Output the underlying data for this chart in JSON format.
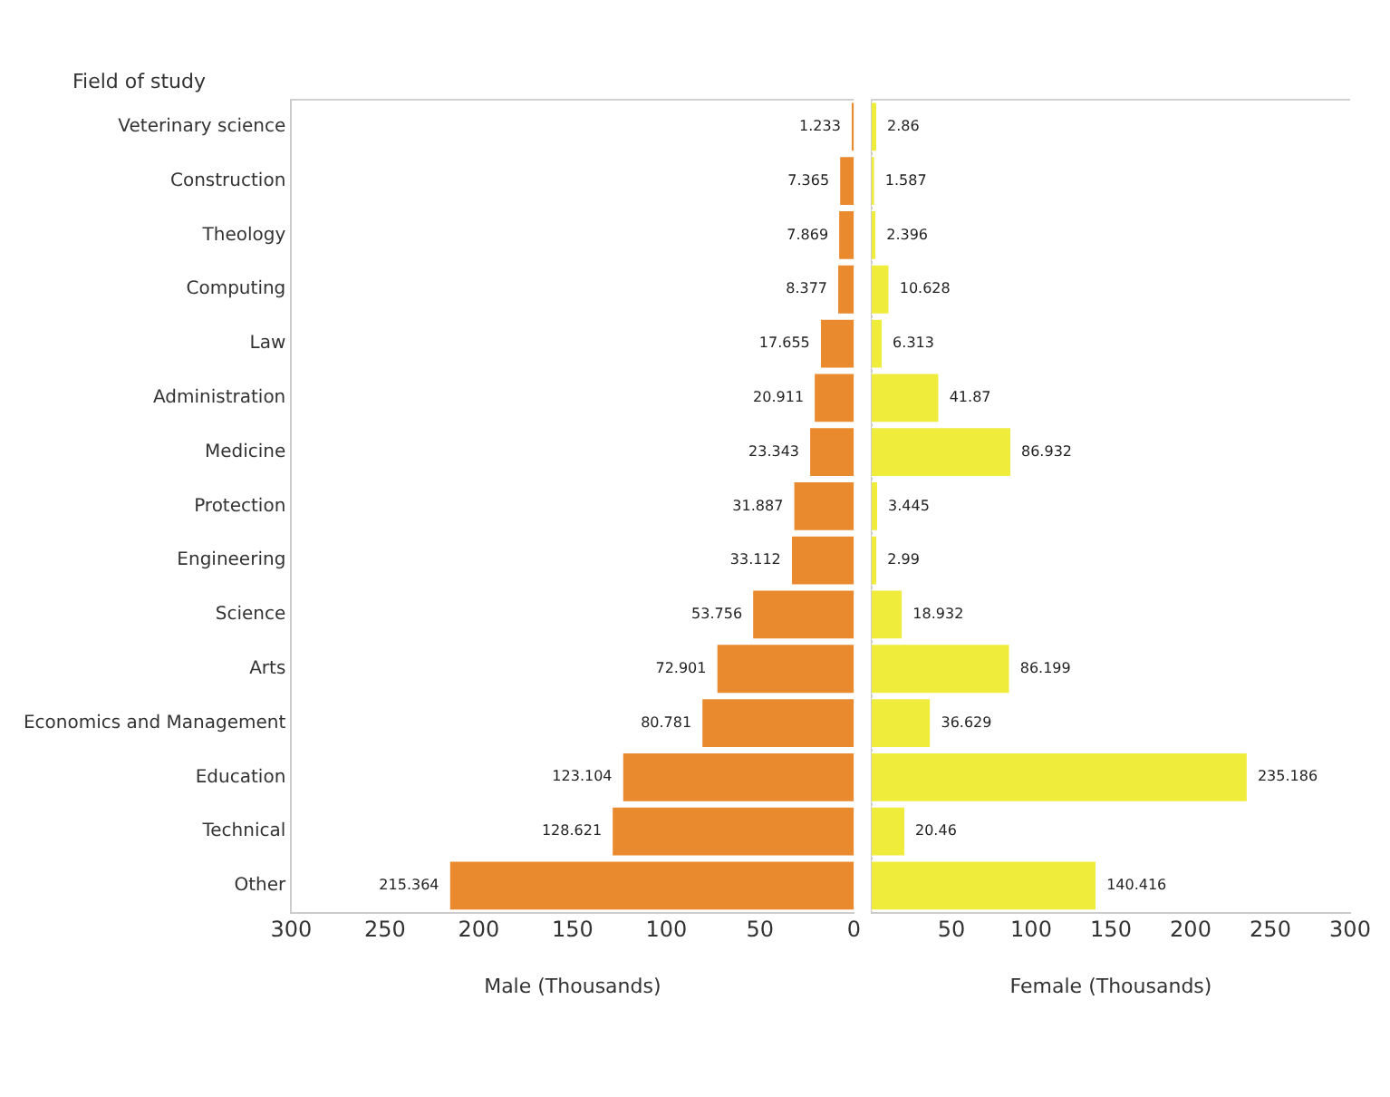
{
  "chart_data": [
    {
      "type": "bar",
      "orientation": "horizontal",
      "ylabel": "Field of study",
      "xlabel": "Male (Thousands)",
      "categories": [
        "Veterinary science",
        "Construction",
        "Theology",
        "Computing",
        "Law",
        "Administration",
        "Medicine",
        "Protection",
        "Engineering",
        "Science",
        "Arts",
        "Economics and Management",
        "Education",
        "Technical",
        "Other"
      ],
      "series": [
        {
          "color": "#e98a2e",
          "values": [
            1.233,
            7.365,
            7.869,
            8.377,
            17.655,
            20.911,
            23.343,
            31.887,
            33.112,
            53.756,
            72.901,
            80.781,
            123.104,
            128.621,
            215.364
          ]
        }
      ],
      "data_labels": true,
      "xlim": [
        300,
        0
      ],
      "xticks": [
        300,
        250,
        200,
        150,
        100,
        50,
        0
      ]
    },
    {
      "type": "bar",
      "orientation": "horizontal",
      "xlabel": "Female (Thousands)",
      "tick_labels": "x",
      "categories": [
        null,
        null,
        null,
        null,
        null,
        null,
        null,
        null,
        null,
        null,
        null,
        null,
        null,
        null,
        null
      ],
      "series": [
        {
          "color": "#efec3c",
          "values": [
            2.86,
            1.587,
            2.396,
            10.628,
            6.313,
            41.87,
            86.932,
            3.445,
            2.99,
            18.932,
            86.199,
            36.629,
            235.186,
            20.46,
            140.416
          ]
        }
      ],
      "data_labels": true,
      "xlim": [
        0,
        300
      ],
      "xticks": [
        {
          "value": 0,
          "label": null
        },
        50,
        100,
        150,
        200,
        250,
        300
      ]
    }
  ]
}
